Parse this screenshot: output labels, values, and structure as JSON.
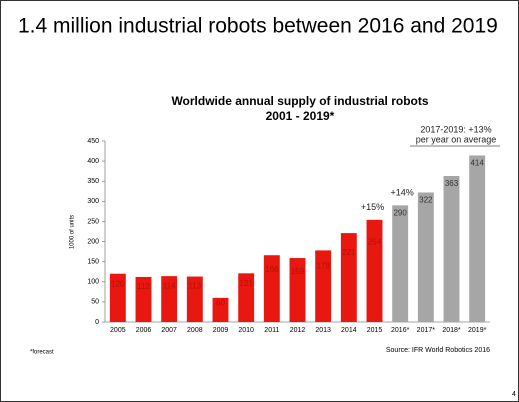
{
  "page_title": "1.4 million industrial robots between 2016 and 2019",
  "page_number": "4",
  "chart_data": {
    "type": "bar",
    "title": "Worldwide annual supply of industrial robots",
    "subtitle": "2001 - 2019*",
    "y_label": "1000 of units",
    "categories": [
      "2005",
      "2006",
      "2007",
      "2008",
      "2009",
      "2010",
      "2011",
      "2012",
      "2013",
      "2014",
      "2015",
      "2016*",
      "2017*",
      "2018*",
      "2019*"
    ],
    "values": [
      120,
      112,
      114,
      113,
      60,
      121,
      166,
      159,
      178,
      221,
      254,
      290,
      322,
      363,
      414
    ],
    "colors": [
      "#e8170f",
      "#e8170f",
      "#e8170f",
      "#e8170f",
      "#e8170f",
      "#e8170f",
      "#e8170f",
      "#e8170f",
      "#e8170f",
      "#e8170f",
      "#e8170f",
      "#a6a6a6",
      "#a6a6a6",
      "#a6a6a6",
      "#a6a6a6"
    ],
    "ylim": [
      0,
      450
    ],
    "yticks": [
      0,
      50,
      100,
      150,
      200,
      250,
      300,
      350,
      400,
      450
    ],
    "grid": false,
    "annotations": [
      "+15%",
      "+14%",
      "2017-2019: +13%",
      "per year on average"
    ],
    "footnote": "*forecast",
    "source": "Source: IFR World Robotics 2016"
  }
}
